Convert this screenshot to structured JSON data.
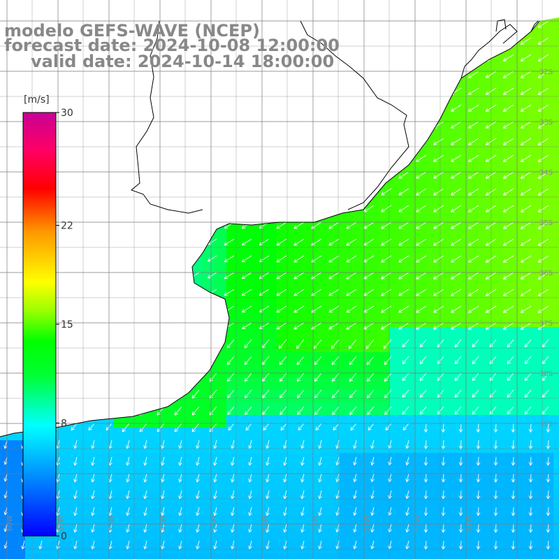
{
  "header": {
    "line1": "modelo GEFS-WAVE (NCEP)",
    "line2": "forecast date: 2024-10-08 12:00:00",
    "line3": "valid date: 2024-10-14 18:00:00"
  },
  "colorbar": {
    "unit": "[m/s]",
    "ticks": [
      "30",
      "22",
      "15",
      "8",
      "0"
    ],
    "tick_values": [
      30,
      22,
      15,
      8,
      0
    ],
    "range": [
      0,
      30
    ],
    "stops": [
      "#0000ff",
      "#0096ff",
      "#00ffff",
      "#00ff32",
      "#00ff00",
      "#96ff00",
      "#ffff00",
      "#ff9600",
      "#ff0000",
      "#ff0064",
      "#c80096"
    ]
  },
  "map": {
    "lat_labels": [
      "32S",
      "33S",
      "34S",
      "35S",
      "36S",
      "37S",
      "38S",
      "39S"
    ],
    "lon_labels": [
      "60W",
      "59W",
      "58W",
      "57W",
      "56W",
      "55W",
      "54W",
      "53W",
      "52W",
      "51W"
    ],
    "land_color": "#ffffff",
    "coast_color": "#000000",
    "grid_color": "#7a7a7a",
    "arrow_color": "#ffffff"
  }
}
